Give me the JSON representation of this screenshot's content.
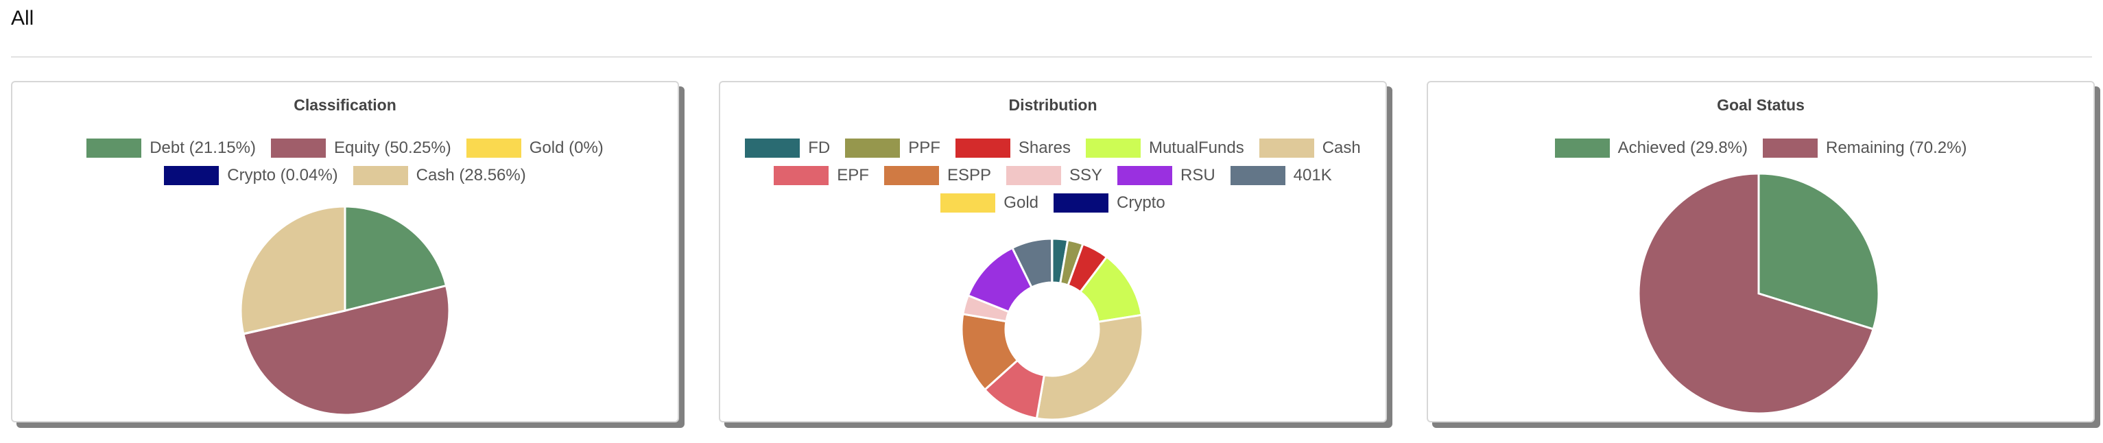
{
  "page": {
    "title": "All"
  },
  "chart_data": [
    {
      "type": "pie",
      "title": "Classification",
      "series": [
        {
          "name": "Debt (21.15%)",
          "value": 21.15,
          "color": "#5f9468"
        },
        {
          "name": "Equity (50.25%)",
          "value": 50.25,
          "color": "#a05e6a"
        },
        {
          "name": "Gold (0%)",
          "value": 0,
          "color": "#fad94f"
        },
        {
          "name": "Crypto (0.04%)",
          "value": 0.04,
          "color": "#050a7a"
        },
        {
          "name": "Cash (28.56%)",
          "value": 28.56,
          "color": "#dfc999"
        }
      ]
    },
    {
      "type": "pie",
      "title": "Distribution",
      "series": [
        {
          "name": "FD",
          "value": 2.6,
          "color": "#2a6b72"
        },
        {
          "name": "PPF",
          "value": 2.6,
          "color": "#96974d"
        },
        {
          "name": "Shares",
          "value": 4.5,
          "color": "#d42b2b"
        },
        {
          "name": "MutualFunds",
          "value": 11.5,
          "color": "#cdfc54"
        },
        {
          "name": "Cash",
          "value": 28.5,
          "color": "#dfc999"
        },
        {
          "name": "EPF",
          "value": 10.0,
          "color": "#e0636d"
        },
        {
          "name": "ESPP",
          "value": 13.5,
          "color": "#d07a43"
        },
        {
          "name": "SSY",
          "value": 3.2,
          "color": "#f2c6c6"
        },
        {
          "name": "RSU",
          "value": 11.0,
          "color": "#9a30e0"
        },
        {
          "name": "401K",
          "value": 6.8,
          "color": "#637688"
        },
        {
          "name": "Gold",
          "value": 0,
          "color": "#fad94f"
        },
        {
          "name": "Crypto",
          "value": 0.04,
          "color": "#050a7a"
        }
      ]
    },
    {
      "type": "pie",
      "title": "Goal Status",
      "series": [
        {
          "name": "Achieved (29.8%)",
          "value": 29.8,
          "color": "#5f9468"
        },
        {
          "name": "Remaining (70.2%)",
          "value": 70.2,
          "color": "#a05e6a"
        }
      ]
    }
  ]
}
